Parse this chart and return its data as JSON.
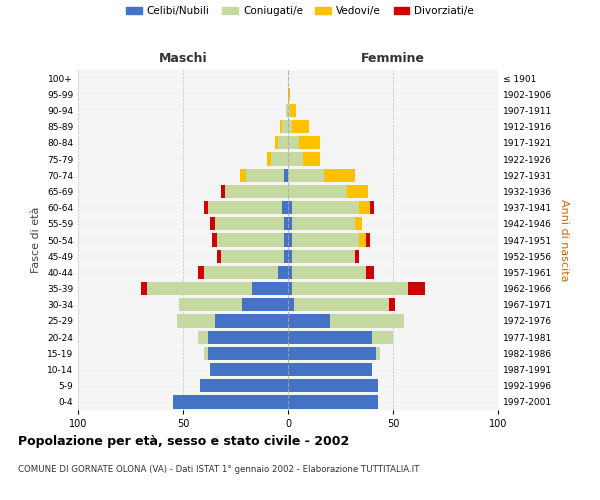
{
  "age_groups": [
    "0-4",
    "5-9",
    "10-14",
    "15-19",
    "20-24",
    "25-29",
    "30-34",
    "35-39",
    "40-44",
    "45-49",
    "50-54",
    "55-59",
    "60-64",
    "65-69",
    "70-74",
    "75-79",
    "80-84",
    "85-89",
    "90-94",
    "95-99",
    "100+"
  ],
  "birth_years": [
    "1997-2001",
    "1992-1996",
    "1987-1991",
    "1982-1986",
    "1977-1981",
    "1972-1976",
    "1967-1971",
    "1962-1966",
    "1957-1961",
    "1952-1956",
    "1947-1951",
    "1942-1946",
    "1937-1941",
    "1932-1936",
    "1927-1931",
    "1922-1926",
    "1917-1921",
    "1912-1916",
    "1907-1911",
    "1902-1906",
    "≤ 1901"
  ],
  "males": {
    "celibi": [
      55,
      42,
      37,
      38,
      38,
      35,
      22,
      17,
      5,
      2,
      2,
      2,
      3,
      0,
      2,
      0,
      0,
      0,
      0,
      0,
      0
    ],
    "coniugati": [
      0,
      0,
      0,
      2,
      5,
      18,
      30,
      50,
      35,
      30,
      32,
      33,
      35,
      30,
      18,
      8,
      5,
      3,
      1,
      0,
      0
    ],
    "vedovi": [
      0,
      0,
      0,
      0,
      0,
      0,
      0,
      0,
      0,
      0,
      0,
      0,
      0,
      0,
      3,
      2,
      1,
      1,
      0,
      0,
      0
    ],
    "divorziati": [
      0,
      0,
      0,
      0,
      0,
      0,
      0,
      3,
      3,
      2,
      2,
      2,
      2,
      2,
      0,
      0,
      0,
      0,
      0,
      0,
      0
    ]
  },
  "females": {
    "nubili": [
      43,
      43,
      40,
      42,
      40,
      20,
      3,
      2,
      2,
      2,
      2,
      2,
      2,
      0,
      0,
      0,
      0,
      0,
      0,
      0,
      0
    ],
    "coniugate": [
      0,
      0,
      0,
      2,
      10,
      35,
      45,
      55,
      35,
      30,
      32,
      30,
      32,
      28,
      17,
      7,
      5,
      2,
      1,
      0,
      0
    ],
    "vedove": [
      0,
      0,
      0,
      0,
      0,
      0,
      0,
      0,
      0,
      0,
      3,
      3,
      5,
      10,
      15,
      8,
      10,
      8,
      3,
      1,
      0
    ],
    "divorziate": [
      0,
      0,
      0,
      0,
      0,
      0,
      3,
      8,
      4,
      2,
      2,
      0,
      2,
      0,
      0,
      0,
      0,
      0,
      0,
      0,
      0
    ]
  },
  "colors": {
    "celibi_nubili": "#4472c4",
    "coniugati": "#c5d9a0",
    "vedovi": "#ffc000",
    "divorziati": "#cc0000"
  },
  "xlim": 100,
  "title": "Popolazione per età, sesso e stato civile - 2002",
  "subtitle": "COMUNE DI GORNATE OLONA (VA) - Dati ISTAT 1° gennaio 2002 - Elaborazione TUTTITALIA.IT",
  "ylabel_left": "Fasce di età",
  "ylabel_right": "Anni di nascita",
  "xlabel_left": "Maschi",
  "xlabel_right": "Femmine",
  "bg_color": "#f5f5f5",
  "plot_bg": "#f5f5f5",
  "grid_color": "#cccccc"
}
